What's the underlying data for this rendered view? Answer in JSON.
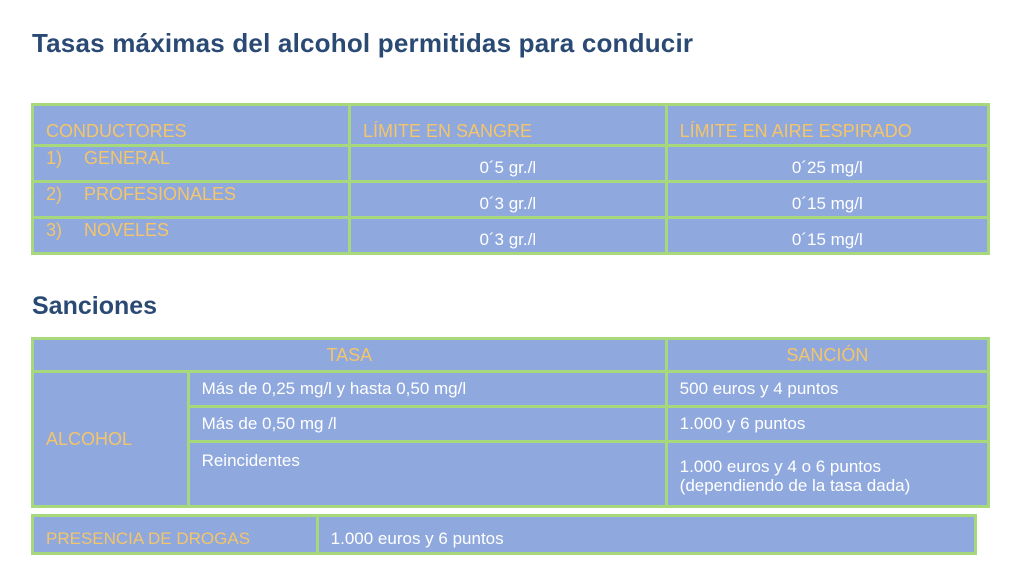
{
  "title": "Tasas máximas del alcohol permitidas para conducir",
  "limits_table": {
    "headers": [
      "CONDUCTORES",
      "LÍMITE EN SANGRE",
      "LÍMITE EN AIRE ESPIRADO"
    ],
    "rows": [
      {
        "num": "1)",
        "name": "GENERAL",
        "sangre": "0´5 gr./l",
        "aire": "0´25 mg/l"
      },
      {
        "num": "2)",
        "name": "PROFESIONALES",
        "sangre": "0´3 gr./l",
        "aire": "0´15 mg/l"
      },
      {
        "num": "3)",
        "name": "NOVELES",
        "sangre": "0´3 gr./l",
        "aire": "0´15 mg/l"
      }
    ]
  },
  "sanciones_title": "Sanciones",
  "sanciones_table": {
    "header_tasa": "TASA",
    "header_sancion": "SANCIÓN",
    "group_label": "ALCOHOL",
    "rows": [
      {
        "tasa": "Más de 0,25 mg/l y hasta 0,50 mg/l",
        "sancion": "500 euros y 4 puntos"
      },
      {
        "tasa": "Más de 0,50 mg /l",
        "sancion": "1.000 y 6 puntos"
      },
      {
        "tasa": "Reincidentes",
        "sancion_line1": "1.000 euros y 4 o 6 puntos",
        "sancion_line2": "(dependiendo de la tasa dada)"
      }
    ]
  },
  "drogas": {
    "label": "PRESENCIA DE DROGAS",
    "sancion": "1.000 euros y 6 puntos"
  },
  "colors": {
    "table_fill": "#8fa8dd",
    "border": "#a7d87c",
    "header_text": "#f4c56a",
    "title": "#2a4a74"
  }
}
